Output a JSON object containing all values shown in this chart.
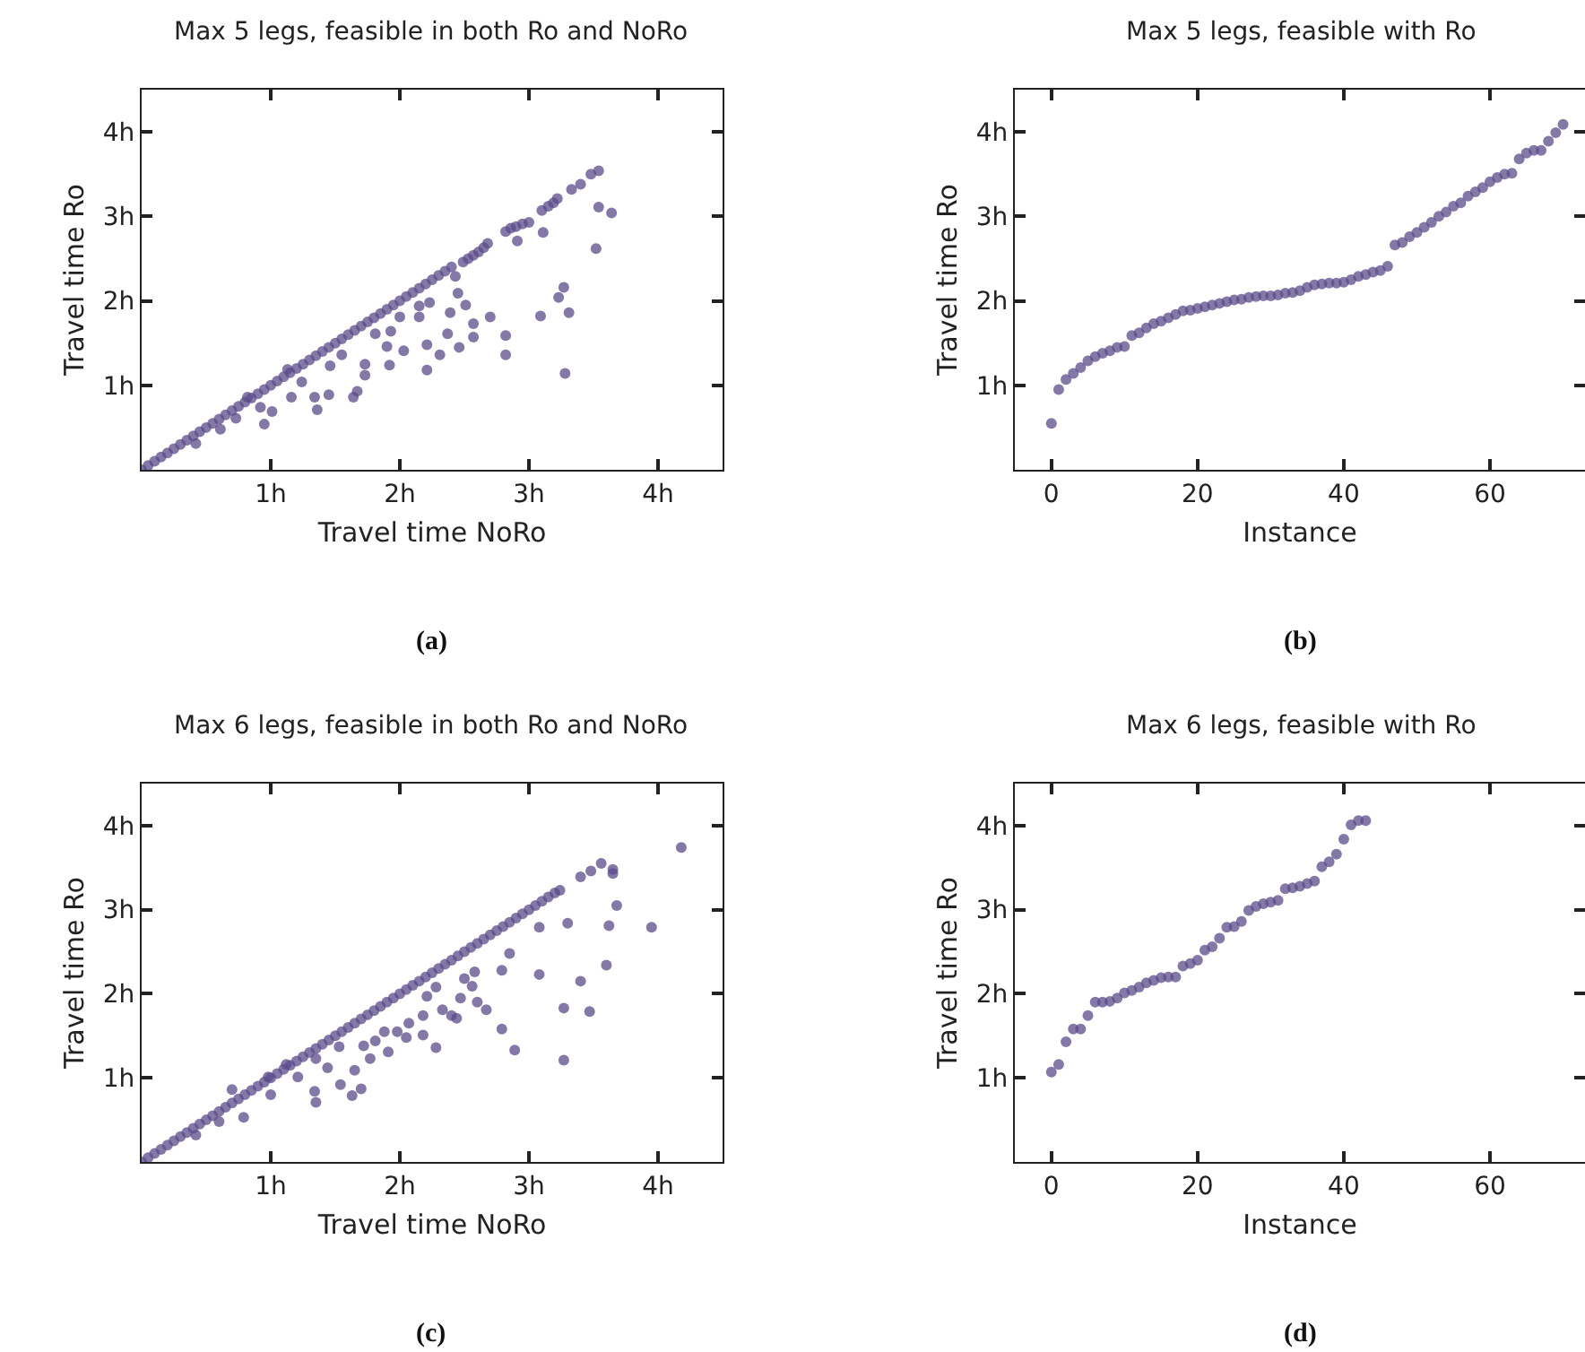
{
  "chart_data": [
    {
      "type": "scatter",
      "title": "Max 5 legs, feasible in both Ro and NoRo",
      "xlabel": "Travel time NoRo",
      "ylabel": "Travel time Ro",
      "annotations": [
        "(a)"
      ],
      "marker": "circle",
      "xlim": [
        0,
        4.5
      ],
      "ylim": [
        0,
        4.5
      ],
      "xticks": [
        {
          "value": 1,
          "label": "1h"
        },
        {
          "value": 2,
          "label": "2h"
        },
        {
          "value": 3,
          "label": "3h"
        },
        {
          "value": 4,
          "label": "4h"
        }
      ],
      "yticks": [
        {
          "value": 1,
          "label": "1h"
        },
        {
          "value": 2,
          "label": "2h"
        },
        {
          "value": 3,
          "label": "3h"
        },
        {
          "value": 4,
          "label": "4h"
        }
      ],
      "series": [
        {
          "color": "#5b4b8a",
          "x": [
            0,
            0.05,
            0.1,
            0.15,
            0.2,
            0.25,
            0.3,
            0.35,
            0.4,
            0.45,
            0.5,
            0.55,
            0.6,
            0.65,
            0.7,
            0.75,
            0.8,
            0.85,
            0.9,
            0.95,
            1,
            1.05,
            1.1,
            1.15,
            1.2,
            1.25,
            1.3,
            1.35,
            1.4,
            1.45,
            1.5,
            1.55,
            1.6,
            1.65,
            1.7,
            1.75,
            1.8,
            1.85,
            1.9,
            1.95,
            2,
            2.05,
            2.1,
            2.15,
            2.2,
            2.25,
            2.3,
            2.35,
            2.4,
            2.49,
            2.53,
            2.57,
            2.61,
            2.65,
            2.68,
            2.82,
            2.86,
            2.9,
            2.95,
            3.0,
            3.1,
            3.15,
            3.19,
            3.22,
            3.33,
            3.4,
            3.48,
            3.54,
            3.54,
            3.64,
            3.52,
            3.27,
            3.23,
            3.31,
            3.28,
            3.09,
            2.91,
            3.11,
            2.82,
            2.82,
            2.7,
            2.57,
            2.57,
            2.51,
            2.45,
            2.43,
            2.46,
            2.39,
            2.37,
            2.31,
            2.21,
            2.21,
            2.23,
            2.15,
            2.15,
            2.0,
            2.03,
            1.92,
            1.9,
            1.93,
            1.73,
            1.73,
            1.67,
            1.64,
            1.55,
            1.46,
            1.45,
            1.36,
            1.34,
            1.24,
            1.16,
            1.01,
            0.95,
            0.92,
            0.82,
            0.73,
            0.61,
            0.42,
            1.13,
            1.81
          ],
          "values": [
            0,
            0.05,
            0.1,
            0.15,
            0.2,
            0.25,
            0.3,
            0.35,
            0.4,
            0.45,
            0.5,
            0.55,
            0.6,
            0.65,
            0.7,
            0.75,
            0.8,
            0.85,
            0.9,
            0.95,
            1,
            1.05,
            1.1,
            1.15,
            1.2,
            1.25,
            1.3,
            1.35,
            1.4,
            1.45,
            1.5,
            1.55,
            1.6,
            1.65,
            1.7,
            1.75,
            1.8,
            1.85,
            1.9,
            1.95,
            2,
            2.05,
            2.1,
            2.15,
            2.2,
            2.25,
            2.3,
            2.35,
            2.4,
            2.46,
            2.5,
            2.54,
            2.58,
            2.63,
            2.68,
            2.82,
            2.86,
            2.88,
            2.91,
            2.93,
            3.07,
            3.12,
            3.16,
            3.21,
            3.32,
            3.38,
            3.5,
            3.54,
            3.11,
            3.04,
            2.62,
            2.16,
            2.04,
            1.86,
            1.14,
            1.82,
            2.71,
            2.81,
            1.59,
            1.36,
            1.81,
            1.73,
            1.57,
            1.95,
            2.09,
            2.29,
            1.45,
            1.86,
            1.61,
            1.36,
            1.48,
            1.18,
            1.98,
            1.94,
            1.81,
            1.81,
            1.41,
            1.24,
            1.46,
            1.64,
            1.12,
            1.25,
            0.93,
            0.86,
            1.36,
            1.23,
            0.89,
            0.71,
            0.86,
            1.04,
            0.86,
            0.69,
            0.54,
            0.74,
            0.86,
            0.61,
            0.48,
            0.31,
            1.19,
            1.61
          ]
        }
      ]
    },
    {
      "type": "scatter",
      "title": "Max 5 legs, feasible with Ro",
      "xlabel": "Instance",
      "ylabel": "Travel time Ro",
      "annotations": [
        "(b)"
      ],
      "marker": "circle",
      "xlim": [
        -5,
        73
      ],
      "ylim": [
        0,
        4.5
      ],
      "xticks": [
        0,
        20,
        40,
        60
      ],
      "yticks": [
        {
          "value": 1,
          "label": "1h"
        },
        {
          "value": 2,
          "label": "2h"
        },
        {
          "value": 3,
          "label": "3h"
        },
        {
          "value": 4,
          "label": "4h"
        }
      ],
      "series": [
        {
          "color": "#5b4b8a",
          "x": [
            0,
            1,
            2,
            3,
            4,
            5,
            6,
            7,
            8,
            9,
            10,
            11,
            12,
            13,
            14,
            15,
            16,
            17,
            18,
            19,
            20,
            21,
            22,
            23,
            24,
            25,
            26,
            27,
            28,
            29,
            30,
            31,
            32,
            33,
            34,
            35,
            36,
            37,
            38,
            39,
            40,
            41,
            42,
            43,
            44,
            45,
            46,
            47,
            48,
            49,
            50,
            51,
            52,
            53,
            54,
            55,
            56,
            57,
            58,
            59,
            60,
            61,
            62,
            63,
            64,
            65,
            66,
            67,
            68,
            69,
            70
          ],
          "values": [
            0.55,
            0.95,
            1.07,
            1.14,
            1.21,
            1.29,
            1.34,
            1.38,
            1.41,
            1.45,
            1.46,
            1.59,
            1.62,
            1.68,
            1.73,
            1.76,
            1.8,
            1.84,
            1.88,
            1.89,
            1.91,
            1.93,
            1.95,
            1.97,
            1.99,
            2.01,
            2.02,
            2.04,
            2.05,
            2.06,
            2.06,
            2.07,
            2.09,
            2.1,
            2.12,
            2.16,
            2.19,
            2.2,
            2.21,
            2.21,
            2.22,
            2.25,
            2.29,
            2.31,
            2.34,
            2.36,
            2.41,
            2.66,
            2.69,
            2.76,
            2.81,
            2.87,
            2.93,
            3.0,
            3.05,
            3.12,
            3.16,
            3.24,
            3.29,
            3.34,
            3.41,
            3.46,
            3.5,
            3.51,
            3.68,
            3.75,
            3.78,
            3.78,
            3.89,
            3.99,
            4.09
          ]
        }
      ]
    },
    {
      "type": "scatter",
      "title": "Max 6 legs, feasible in both Ro and NoRo",
      "xlabel": "Travel time NoRo",
      "ylabel": "Travel time Ro",
      "annotations": [
        "(c)"
      ],
      "marker": "circle",
      "xlim": [
        0,
        4.5
      ],
      "ylim": [
        0,
        4.5
      ],
      "xticks": [
        {
          "value": 1,
          "label": "1h"
        },
        {
          "value": 2,
          "label": "2h"
        },
        {
          "value": 3,
          "label": "3h"
        },
        {
          "value": 4,
          "label": "4h"
        }
      ],
      "yticks": [
        {
          "value": 1,
          "label": "1h"
        },
        {
          "value": 2,
          "label": "2h"
        },
        {
          "value": 3,
          "label": "3h"
        },
        {
          "value": 4,
          "label": "4h"
        }
      ],
      "series": [
        {
          "color": "#5b4b8a",
          "x": [
            0,
            0.05,
            0.1,
            0.15,
            0.2,
            0.25,
            0.3,
            0.35,
            0.4,
            0.45,
            0.5,
            0.55,
            0.6,
            0.65,
            0.7,
            0.75,
            0.8,
            0.85,
            0.9,
            0.95,
            1,
            1.05,
            1.1,
            1.15,
            1.2,
            1.25,
            1.3,
            1.35,
            1.4,
            1.45,
            1.5,
            1.55,
            1.6,
            1.65,
            1.7,
            1.75,
            1.8,
            1.85,
            1.9,
            1.95,
            2,
            2.05,
            2.1,
            2.15,
            2.2,
            2.25,
            2.3,
            2.35,
            2.4,
            2.45,
            2.5,
            2.55,
            2.6,
            2.65,
            2.7,
            2.75,
            2.8,
            2.85,
            2.9,
            2.95,
            3,
            3.05,
            3.1,
            3.15,
            3.2,
            4.18,
            3.56,
            3.65,
            3.48,
            3.4,
            3.65,
            3.68,
            3.62,
            3.95,
            3.3,
            3.08,
            3.24,
            2.85,
            2.79,
            3.08,
            3.6,
            3.4,
            3.27,
            3.47,
            3.27,
            2.89,
            2.79,
            2.67,
            2.58,
            2.5,
            2.56,
            2.6,
            2.47,
            2.4,
            2.44,
            2.33,
            2.28,
            2.21,
            2.18,
            2.18,
            2.28,
            2.07,
            2.05,
            1.91,
            1.98,
            1.88,
            1.81,
            1.72,
            1.65,
            1.7,
            1.63,
            1.54,
            1.44,
            1.35,
            1.34,
            1.35,
            1.21,
            1.12,
            1.0,
            0.98,
            0.79,
            0.7,
            0.6,
            0.42,
            1.53,
            1.77
          ],
          "values": [
            0,
            0.05,
            0.1,
            0.15,
            0.2,
            0.25,
            0.3,
            0.35,
            0.4,
            0.45,
            0.5,
            0.55,
            0.6,
            0.65,
            0.7,
            0.75,
            0.8,
            0.85,
            0.9,
            0.95,
            1,
            1.05,
            1.1,
            1.15,
            1.2,
            1.25,
            1.3,
            1.35,
            1.4,
            1.45,
            1.5,
            1.55,
            1.6,
            1.65,
            1.7,
            1.75,
            1.8,
            1.85,
            1.9,
            1.95,
            2,
            2.05,
            2.1,
            2.15,
            2.2,
            2.25,
            2.3,
            2.35,
            2.4,
            2.45,
            2.5,
            2.55,
            2.6,
            2.65,
            2.7,
            2.75,
            2.8,
            2.85,
            2.9,
            2.95,
            3,
            3.05,
            3.1,
            3.15,
            3.2,
            3.74,
            3.55,
            3.48,
            3.46,
            3.39,
            3.43,
            3.05,
            2.81,
            2.79,
            2.84,
            2.79,
            3.23,
            2.48,
            2.28,
            2.23,
            2.34,
            2.15,
            1.83,
            1.79,
            1.21,
            1.33,
            1.58,
            1.81,
            2.26,
            2.18,
            2.09,
            1.9,
            1.95,
            1.74,
            1.71,
            1.81,
            2.08,
            1.97,
            1.74,
            1.51,
            1.36,
            1.65,
            1.48,
            1.31,
            1.55,
            1.55,
            1.44,
            1.38,
            1.09,
            0.87,
            0.79,
            0.92,
            1.12,
            1.23,
            0.84,
            0.71,
            1.01,
            1.16,
            0.8,
            1.01,
            0.53,
            0.86,
            0.48,
            0.32,
            1.37,
            1.23
          ]
        }
      ]
    },
    {
      "type": "scatter",
      "title": "Max 6 legs, feasible with Ro",
      "xlabel": "Instance",
      "ylabel": "Travel time Ro",
      "annotations": [
        "(d)"
      ],
      "marker": "circle",
      "xlim": [
        -5,
        73
      ],
      "ylim": [
        0,
        4.5
      ],
      "xticks": [
        0,
        20,
        40,
        60
      ],
      "yticks": [
        {
          "value": 1,
          "label": "1h"
        },
        {
          "value": 2,
          "label": "2h"
        },
        {
          "value": 3,
          "label": "3h"
        },
        {
          "value": 4,
          "label": "4h"
        }
      ],
      "series": [
        {
          "color": "#5b4b8a",
          "x": [
            0,
            1,
            2,
            3,
            4,
            5,
            6,
            7,
            8,
            9,
            10,
            11,
            12,
            13,
            14,
            15,
            16,
            17,
            18,
            19,
            20,
            21,
            22,
            23,
            24,
            25,
            26,
            27,
            28,
            29,
            30,
            31,
            32,
            33,
            34,
            35,
            36,
            37,
            38,
            39,
            40,
            41,
            42,
            43
          ],
          "values": [
            1.07,
            1.16,
            1.43,
            1.58,
            1.58,
            1.74,
            1.9,
            1.9,
            1.91,
            1.95,
            2.01,
            2.04,
            2.08,
            2.13,
            2.16,
            2.19,
            2.2,
            2.2,
            2.33,
            2.36,
            2.4,
            2.52,
            2.56,
            2.66,
            2.79,
            2.8,
            2.86,
            2.99,
            3.04,
            3.07,
            3.09,
            3.11,
            3.25,
            3.26,
            3.28,
            3.31,
            3.34,
            3.51,
            3.57,
            3.66,
            3.84,
            4.01,
            4.06,
            4.06
          ]
        }
      ]
    }
  ]
}
